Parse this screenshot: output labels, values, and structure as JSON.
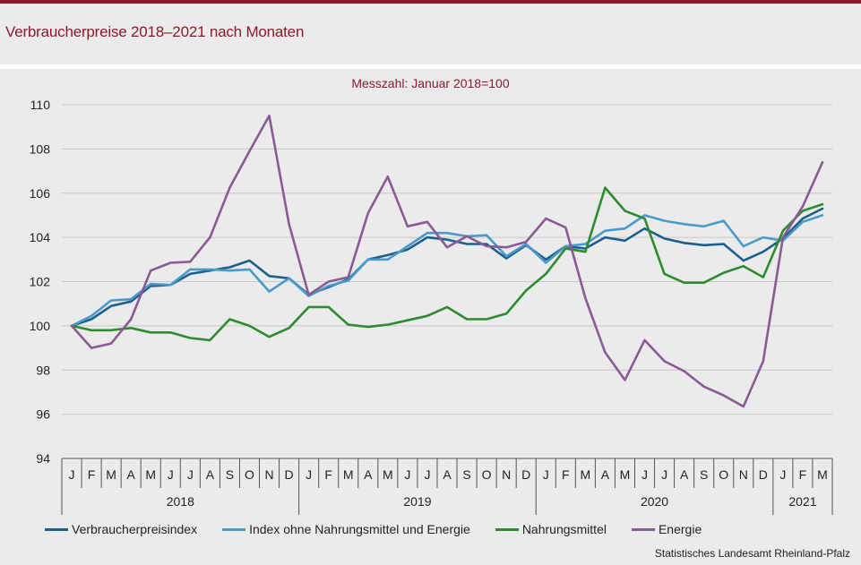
{
  "header": {
    "title": "Verbraucherpreise 2018–2021 nach Monaten"
  },
  "footer": {
    "source": "Statistisches Landesamt Rheinland-Pfalz"
  },
  "chart_data": {
    "type": "line",
    "title": "",
    "subtitle": "Messzahl: Januar 2018=100",
    "xlabel": "",
    "ylabel": "",
    "ylim": [
      94,
      110
    ],
    "yticks": [
      94,
      96,
      98,
      100,
      102,
      104,
      106,
      108,
      110
    ],
    "grid": true,
    "legend_position": "bottom",
    "month_labels": [
      "J",
      "F",
      "M",
      "A",
      "M",
      "J",
      "J",
      "A",
      "S",
      "O",
      "N",
      "D",
      "J",
      "F",
      "M",
      "A",
      "M",
      "J",
      "J",
      "A",
      "S",
      "O",
      "N",
      "D",
      "J",
      "F",
      "M",
      "A",
      "M",
      "J",
      "J",
      "A",
      "S",
      "O",
      "N",
      "D",
      "J",
      "F",
      "M"
    ],
    "year_groups": [
      {
        "label": "2018",
        "months": 12
      },
      {
        "label": "2019",
        "months": 12
      },
      {
        "label": "2020",
        "months": 12
      },
      {
        "label": "2021",
        "months": 3
      }
    ],
    "series": [
      {
        "name": "Verbraucherpreisindex",
        "color": "#1b5f8c",
        "values": [
          100.0,
          100.3,
          100.9,
          101.1,
          101.8,
          101.85,
          102.35,
          102.5,
          102.65,
          102.95,
          102.25,
          102.15,
          101.4,
          101.75,
          102.1,
          103.0,
          103.2,
          103.45,
          104.0,
          103.9,
          103.7,
          103.7,
          103.05,
          103.65,
          103.0,
          103.6,
          103.5,
          104.0,
          103.85,
          104.4,
          103.95,
          103.75,
          103.65,
          103.7,
          102.95,
          103.35,
          103.95,
          104.85,
          105.3
        ]
      },
      {
        "name": "Index ohne Nahrungsmittel und Energie",
        "color": "#4a9ac9",
        "values": [
          100.0,
          100.45,
          101.15,
          101.2,
          101.9,
          101.85,
          102.55,
          102.55,
          102.5,
          102.55,
          101.55,
          102.15,
          101.35,
          101.8,
          102.05,
          103.0,
          103.0,
          103.6,
          104.2,
          104.2,
          104.05,
          104.1,
          103.15,
          103.7,
          102.85,
          103.6,
          103.7,
          104.3,
          104.4,
          105.0,
          104.75,
          104.6,
          104.5,
          104.75,
          103.6,
          104.0,
          103.85,
          104.7,
          105.0
        ]
      },
      {
        "name": "Nahrungsmittel",
        "color": "#2e8b2e",
        "values": [
          100.0,
          99.8,
          99.8,
          99.9,
          99.7,
          99.7,
          99.45,
          99.35,
          100.3,
          100.0,
          99.5,
          99.9,
          100.85,
          100.85,
          100.05,
          99.95,
          100.05,
          100.25,
          100.45,
          100.85,
          100.3,
          100.3,
          100.55,
          101.6,
          102.35,
          103.5,
          103.35,
          106.25,
          105.2,
          104.85,
          102.35,
          101.95,
          101.95,
          102.4,
          102.7,
          102.2,
          104.3,
          105.2,
          105.5
        ]
      },
      {
        "name": "Energie",
        "color": "#8a5a95",
        "values": [
          100.0,
          99.0,
          99.2,
          100.3,
          102.5,
          102.85,
          102.9,
          104.0,
          106.25,
          107.9,
          109.5,
          104.6,
          101.4,
          102.0,
          102.2,
          105.1,
          106.75,
          104.5,
          104.7,
          103.55,
          104.05,
          103.6,
          103.55,
          103.8,
          104.85,
          104.45,
          101.25,
          98.8,
          97.55,
          99.35,
          98.4,
          97.95,
          97.25,
          96.85,
          96.35,
          98.4,
          104.0,
          105.4,
          107.4
        ]
      }
    ]
  }
}
